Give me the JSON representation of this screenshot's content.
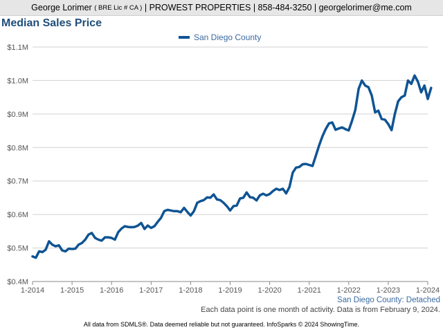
{
  "header": {
    "name": "George Lorimer",
    "license": "( BRE Lic # CA )",
    "rest": "| PROWEST PROPERTIES | 858-484-3250 | georgelorimer@me.com"
  },
  "chart_data": {
    "type": "line",
    "title": "Median Sales Price",
    "xlabel": "",
    "ylabel": "",
    "ylim": [
      400000,
      1100000
    ],
    "yticks": [
      400000,
      500000,
      600000,
      700000,
      800000,
      900000,
      1000000,
      1100000
    ],
    "ytick_labels": [
      "$0.4M",
      "$0.5M",
      "$0.6M",
      "$0.7M",
      "$0.8M",
      "$0.9M",
      "$1.0M",
      "$1.1M"
    ],
    "xticks": [
      "1-2014",
      "1-2015",
      "1-2016",
      "1-2017",
      "1-2018",
      "1-2019",
      "1-2020",
      "1-2021",
      "1-2022",
      "1-2023",
      "1-2024"
    ],
    "grid": "horizontal",
    "legend_position": "top-center",
    "colors": {
      "series": "#0f5493",
      "grid": "#d0d0d0",
      "title": "#1f4e79"
    },
    "series": [
      {
        "name": "San Diego County",
        "x_start": "1-2014",
        "frequency": "monthly",
        "values": [
          475000,
          471000,
          490000,
          488000,
          495000,
          520000,
          510000,
          505000,
          508000,
          493000,
          490000,
          498000,
          497000,
          498000,
          510000,
          515000,
          525000,
          540000,
          545000,
          530000,
          525000,
          522000,
          532000,
          532000,
          530000,
          525000,
          547000,
          558000,
          565000,
          563000,
          562000,
          563000,
          567000,
          575000,
          557000,
          567000,
          560000,
          565000,
          578000,
          590000,
          610000,
          614000,
          612000,
          610000,
          610000,
          607000,
          620000,
          608000,
          597000,
          610000,
          635000,
          640000,
          643000,
          651000,
          650000,
          660000,
          645000,
          643000,
          635000,
          625000,
          612000,
          625000,
          627000,
          648000,
          650000,
          666000,
          652000,
          650000,
          642000,
          657000,
          662000,
          657000,
          661000,
          670000,
          677000,
          673000,
          677000,
          663000,
          682000,
          725000,
          740000,
          742000,
          750000,
          751000,
          748000,
          745000,
          775000,
          806000,
          833000,
          855000,
          872000,
          875000,
          853000,
          857000,
          860000,
          855000,
          851000,
          880000,
          912000,
          975000,
          1000000,
          985000,
          980000,
          955000,
          905000,
          910000,
          885000,
          883000,
          870000,
          852000,
          900000,
          938000,
          950000,
          955000,
          1000000,
          990000,
          1015000,
          997000,
          965000,
          985000,
          945000,
          978000
        ]
      }
    ]
  },
  "footer": {
    "subtitle": "San Diego County: Detached",
    "note": "Each data point is one month of activity. Data is from February 9, 2024.",
    "disclaimer": "All data from SDMLS®. Data deemed reliable but not guaranteed. InfoSparks © 2024 ShowingTime."
  }
}
